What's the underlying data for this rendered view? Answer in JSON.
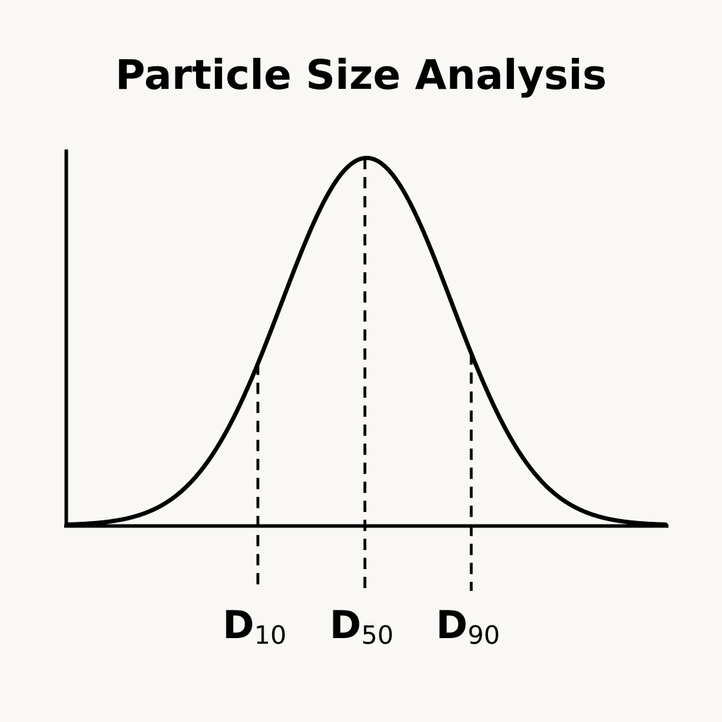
{
  "chart_data": {
    "type": "line",
    "title": "Particle Size Analysis",
    "xlabel": "",
    "ylabel": "",
    "grid": false,
    "legend": "none",
    "distribution": {
      "shape": "bell",
      "x_range": [
        0,
        100
      ],
      "y_range": [
        0,
        1
      ],
      "series": [
        {
          "x": [
            0,
            5,
            10,
            15,
            20,
            25,
            30,
            35,
            40,
            45,
            50,
            55,
            60,
            65,
            70,
            75,
            80,
            85,
            90,
            95,
            100
          ],
          "y": [
            0.0,
            0.004,
            0.02,
            0.05,
            0.12,
            0.24,
            0.41,
            0.63,
            0.83,
            0.96,
            1.0,
            0.96,
            0.83,
            0.63,
            0.41,
            0.24,
            0.12,
            0.05,
            0.02,
            0.004,
            0.0
          ]
        }
      ]
    },
    "markers": [
      {
        "label": "D",
        "subscript": "10",
        "x": 31.8
      },
      {
        "label": "D",
        "subscript": "50",
        "x": 49.7
      },
      {
        "label": "D",
        "subscript": "90",
        "x": 67.5
      }
    ]
  },
  "colors": {
    "background": "#f9f8f4",
    "ink": "#000000"
  }
}
